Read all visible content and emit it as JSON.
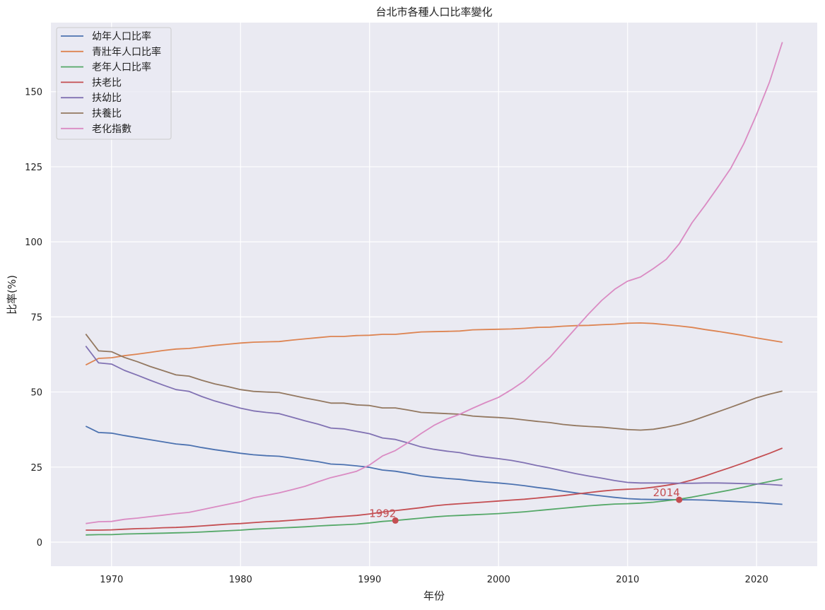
{
  "chart_data": {
    "type": "line",
    "title": "台北市各種人口比率變化",
    "xlabel": "年份",
    "ylabel": "比率(%)",
    "xlim": [
      1965.3,
      2024.7
    ],
    "ylim": [
      -8,
      173
    ],
    "xticks": [
      1970,
      1980,
      1990,
      2000,
      2010,
      2020
    ],
    "xtick_labels": [
      "1970",
      "1980",
      "1990",
      "2000",
      "2010",
      "2020"
    ],
    "yticks": [
      0,
      25,
      50,
      75,
      100,
      125,
      150
    ],
    "ytick_labels": [
      "0",
      "25",
      "50",
      "75",
      "100",
      "125",
      "150"
    ],
    "grid": true,
    "legend_position": "top-left",
    "x": [
      1968,
      1969,
      1970,
      1971,
      1972,
      1973,
      1974,
      1975,
      1976,
      1977,
      1978,
      1979,
      1980,
      1981,
      1982,
      1983,
      1984,
      1985,
      1986,
      1987,
      1988,
      1989,
      1990,
      1991,
      1992,
      1993,
      1994,
      1995,
      1996,
      1997,
      1998,
      1999,
      2000,
      2001,
      2002,
      2003,
      2004,
      2005,
      2006,
      2007,
      2008,
      2009,
      2010,
      2011,
      2012,
      2013,
      2014,
      2015,
      2016,
      2017,
      2018,
      2019,
      2020,
      2021,
      2022
    ],
    "series": [
      {
        "name": "幼年人口比率",
        "color": "#4c72b0",
        "values": [
          38.6,
          36.5,
          36.3,
          35.5,
          34.8,
          34.1,
          33.4,
          32.7,
          32.3,
          31.5,
          30.8,
          30.2,
          29.6,
          29.1,
          28.8,
          28.6,
          28.0,
          27.4,
          26.8,
          26.0,
          25.8,
          25.4,
          24.9,
          24.0,
          23.6,
          22.9,
          22.1,
          21.6,
          21.2,
          20.9,
          20.4,
          20.0,
          19.7,
          19.3,
          18.8,
          18.2,
          17.7,
          17.0,
          16.4,
          15.9,
          15.4,
          14.9,
          14.5,
          14.3,
          14.2,
          14.2,
          14.1,
          14.1,
          14.0,
          13.8,
          13.6,
          13.4,
          13.2,
          12.9,
          12.6
        ]
      },
      {
        "name": "青壯年人口比率",
        "color": "#dd8452",
        "values": [
          59.0,
          61.2,
          61.4,
          62.1,
          62.6,
          63.2,
          63.8,
          64.3,
          64.5,
          65.0,
          65.5,
          65.9,
          66.3,
          66.6,
          66.7,
          66.8,
          67.3,
          67.7,
          68.1,
          68.5,
          68.5,
          68.8,
          68.9,
          69.2,
          69.2,
          69.6,
          70.0,
          70.1,
          70.2,
          70.3,
          70.7,
          70.8,
          70.9,
          71.0,
          71.2,
          71.5,
          71.6,
          71.9,
          72.1,
          72.2,
          72.4,
          72.6,
          72.9,
          73.0,
          72.8,
          72.4,
          72.0,
          71.5,
          70.8,
          70.2,
          69.5,
          68.8,
          68.0,
          67.3,
          66.6
        ]
      },
      {
        "name": "老年人口比率",
        "color": "#55a868",
        "values": [
          2.4,
          2.5,
          2.5,
          2.7,
          2.8,
          2.9,
          3.0,
          3.1,
          3.2,
          3.4,
          3.6,
          3.8,
          4.0,
          4.3,
          4.5,
          4.7,
          4.9,
          5.1,
          5.4,
          5.6,
          5.8,
          6.0,
          6.4,
          6.9,
          7.2,
          7.6,
          8.0,
          8.4,
          8.7,
          8.9,
          9.1,
          9.3,
          9.5,
          9.8,
          10.1,
          10.5,
          10.9,
          11.3,
          11.7,
          12.1,
          12.4,
          12.7,
          12.8,
          13.0,
          13.3,
          13.8,
          14.3,
          15.0,
          15.8,
          16.6,
          17.4,
          18.3,
          19.3,
          20.2,
          21.1
        ]
      },
      {
        "name": "扶老比",
        "color": "#c44e52",
        "values": [
          4.0,
          4.0,
          4.1,
          4.3,
          4.5,
          4.6,
          4.8,
          4.9,
          5.1,
          5.4,
          5.7,
          6.0,
          6.2,
          6.5,
          6.8,
          7.0,
          7.3,
          7.6,
          7.9,
          8.3,
          8.6,
          8.9,
          9.4,
          10.0,
          10.5,
          11.0,
          11.5,
          12.1,
          12.5,
          12.8,
          13.1,
          13.4,
          13.7,
          14.0,
          14.3,
          14.7,
          15.1,
          15.5,
          16.0,
          16.5,
          17.0,
          17.4,
          17.6,
          17.8,
          18.3,
          18.9,
          19.6,
          20.7,
          22.0,
          23.5,
          24.9,
          26.4,
          28.0,
          29.6,
          31.3
        ]
      },
      {
        "name": "扶幼比",
        "color": "#8172b3",
        "values": [
          65.3,
          59.7,
          59.3,
          57.2,
          55.6,
          53.9,
          52.3,
          50.8,
          50.2,
          48.5,
          47.0,
          45.8,
          44.6,
          43.7,
          43.2,
          42.8,
          41.6,
          40.4,
          39.3,
          38.0,
          37.7,
          36.9,
          36.1,
          34.7,
          34.2,
          33.0,
          31.7,
          30.9,
          30.3,
          29.8,
          28.9,
          28.3,
          27.8,
          27.2,
          26.4,
          25.5,
          24.7,
          23.7,
          22.8,
          22.0,
          21.3,
          20.5,
          19.9,
          19.7,
          19.7,
          19.7,
          19.6,
          19.6,
          19.7,
          19.7,
          19.6,
          19.5,
          19.4,
          19.2,
          18.9
        ]
      },
      {
        "name": "扶養比",
        "color": "#937860",
        "values": [
          69.3,
          63.7,
          63.4,
          61.5,
          60.1,
          58.5,
          57.1,
          55.7,
          55.3,
          53.9,
          52.7,
          51.8,
          50.8,
          50.2,
          50.0,
          49.8,
          48.9,
          48.0,
          47.2,
          46.3,
          46.3,
          45.7,
          45.5,
          44.7,
          44.7,
          44.0,
          43.2,
          43.0,
          42.8,
          42.6,
          42.0,
          41.7,
          41.5,
          41.2,
          40.7,
          40.2,
          39.8,
          39.2,
          38.8,
          38.5,
          38.3,
          37.9,
          37.5,
          37.3,
          37.6,
          38.3,
          39.2,
          40.4,
          41.9,
          43.4,
          44.9,
          46.5,
          48.1,
          49.3,
          50.3
        ]
      },
      {
        "name": "老化指數",
        "color": "#da8bc3",
        "values": [
          6.2,
          6.8,
          6.9,
          7.6,
          8.0,
          8.5,
          9.0,
          9.5,
          9.9,
          10.8,
          11.7,
          12.6,
          13.5,
          14.8,
          15.6,
          16.4,
          17.5,
          18.6,
          20.1,
          21.5,
          22.5,
          23.6,
          25.7,
          28.7,
          30.5,
          33.2,
          36.2,
          38.9,
          41.0,
          42.6,
          44.6,
          46.5,
          48.2,
          50.8,
          53.7,
          57.7,
          61.6,
          66.5,
          71.3,
          76.1,
          80.5,
          84.2,
          86.9,
          88.3,
          91.1,
          94.2,
          99.3,
          106.4,
          112.1,
          118.2,
          124.5,
          132.6,
          142.4,
          153.2,
          166.5
        ]
      }
    ],
    "annotations": [
      {
        "x": 1992,
        "y": 7.2,
        "text": "1992",
        "color": "#c44e52"
      },
      {
        "x": 2014,
        "y": 14.1,
        "text": "2014",
        "color": "#c44e52"
      }
    ]
  }
}
